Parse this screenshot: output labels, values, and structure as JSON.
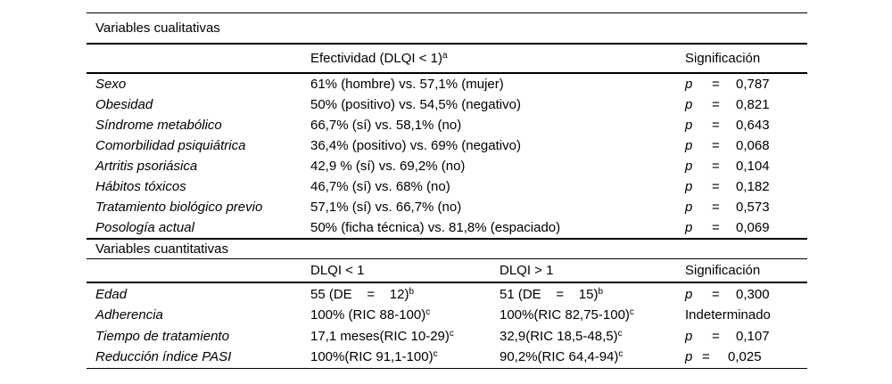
{
  "qualitative": {
    "section_title": "Variables cualitativas",
    "header": {
      "effectiveness": {
        "text": "Efectividad (DLQI < 1)",
        "sup": "a"
      },
      "significance": "Significación"
    },
    "rows": [
      {
        "label": "Sexo",
        "value": "61% (hombre) vs. 57,1% (mujer)",
        "p_symbol": "p",
        "eq": "=",
        "p_value": "0,787"
      },
      {
        "label": "Obesidad",
        "value": "50% (positivo) vs. 54,5% (negativo)",
        "p_symbol": "p",
        "eq": "=",
        "p_value": "0,821"
      },
      {
        "label": "Síndrome metabólico",
        "value": "66,7% (sí) vs. 58,1% (no)",
        "p_symbol": "p",
        "eq": "=",
        "p_value": "0,643"
      },
      {
        "label": "Comorbilidad psiquiátrica",
        "value": "36,4% (positivo) vs. 69% (negativo)",
        "p_symbol": "p",
        "eq": "=",
        "p_value": "0,068"
      },
      {
        "label": "Artritis psoriásica",
        "value": "42,9 % (sí) vs. 69,2% (no)",
        "p_symbol": "p",
        "eq": "=",
        "p_value": "0,104"
      },
      {
        "label": "Hábitos tóxicos",
        "value": "46,7% (sí) vs. 68% (no)",
        "p_symbol": "p",
        "eq": "=",
        "p_value": "0,182"
      },
      {
        "label": "Tratamiento biológico previo",
        "value": "57,1% (sí) vs. 66,7% (no)",
        "p_symbol": "p",
        "eq": "=",
        "p_value": "0,573"
      },
      {
        "label": "Posología actual",
        "value": "50% (ficha técnica) vs. 81,8% (espaciado)",
        "p_symbol": "p",
        "eq": "=",
        "p_value": "0,069"
      }
    ]
  },
  "quantitative": {
    "section_title": "Variables cuantitativas",
    "header": {
      "dlqi_lt1": "DLQI < 1",
      "dlqi_gt1": "DLQI > 1",
      "significance": "Significación"
    },
    "rows": [
      {
        "label": "Edad",
        "v1": {
          "text": "55 (DE    =    12)",
          "sup": "b"
        },
        "v2": {
          "text": "51 (DE    =    15)",
          "sup": "b"
        },
        "p_symbol": "p",
        "eq": "=",
        "p_value": "0,300"
      },
      {
        "label": "Adherencia",
        "v1": {
          "text": "100% (RIC 88-100)",
          "sup": "c"
        },
        "v2": {
          "text": "100%(RIC 82,75-100)",
          "sup": "c"
        },
        "sig_text": "Indeterminado"
      },
      {
        "label": "Tiempo de tratamiento",
        "v1": {
          "text": "17,1 meses(RIC 10-29)",
          "sup": "c"
        },
        "v2": {
          "text": "32,9(RIC 18,5-48,5)",
          "sup": "c"
        },
        "p_symbol": "p",
        "eq": "=",
        "p_value": "0,107"
      },
      {
        "label": "Reducción índice PASI",
        "v1": {
          "text": "100%(RIC 91,1-100)",
          "sup": "c"
        },
        "v2": {
          "text": "90,2%(RIC 64,4-94)",
          "sup": "c"
        },
        "p_symbol": "p",
        "eq": "=",
        "p_value": "0,025"
      }
    ]
  }
}
